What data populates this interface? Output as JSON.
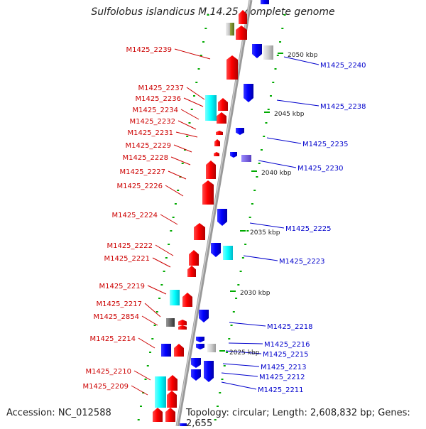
{
  "title": "Sulfolobus islandicus M.14.25, complete genome",
  "footer": {
    "accession": "Accession: NC_012588",
    "summary": "Topology: circular; Length: 2,608,832 bp; Genes: 2,655"
  },
  "colors": {
    "forward_gene": "#ff0000",
    "reverse_gene": "#0000ff",
    "rna_gene": "#00ffff",
    "pseudogene": "#777777",
    "label_forward": "#cc0000",
    "label_reverse": "#0000cc",
    "backbone": "#999999",
    "tick": "#00aa00"
  },
  "scale_labels": [
    "2050 kbp",
    "2045 kbp",
    "2040 kbp",
    "2035 kbp",
    "2030 kbp",
    "2025 kbp"
  ],
  "left_labels": [
    "M1425_2239",
    "M1425_2237",
    "M1425_2236",
    "M1425_2234",
    "M1425_2232",
    "M1425_2231",
    "M1425_2229",
    "M1425_2228",
    "M1425_2227",
    "M1425_2226",
    "M1425_2224",
    "M1425_2222",
    "M1425_2221",
    "M1425_2219",
    "M1425_2217",
    "M1425_2854",
    "M1425_2214",
    "M1425_2210",
    "M1425_2209"
  ],
  "right_labels": [
    "M1425_2240",
    "M1425_2238",
    "M1425_2235",
    "M1425_2230",
    "M1425_2225",
    "M1425_2223",
    "M1425_2218",
    "M1425_2216",
    "M1425_2215",
    "M1425_2213",
    "M1425_2212",
    "M1425_2211"
  ]
}
